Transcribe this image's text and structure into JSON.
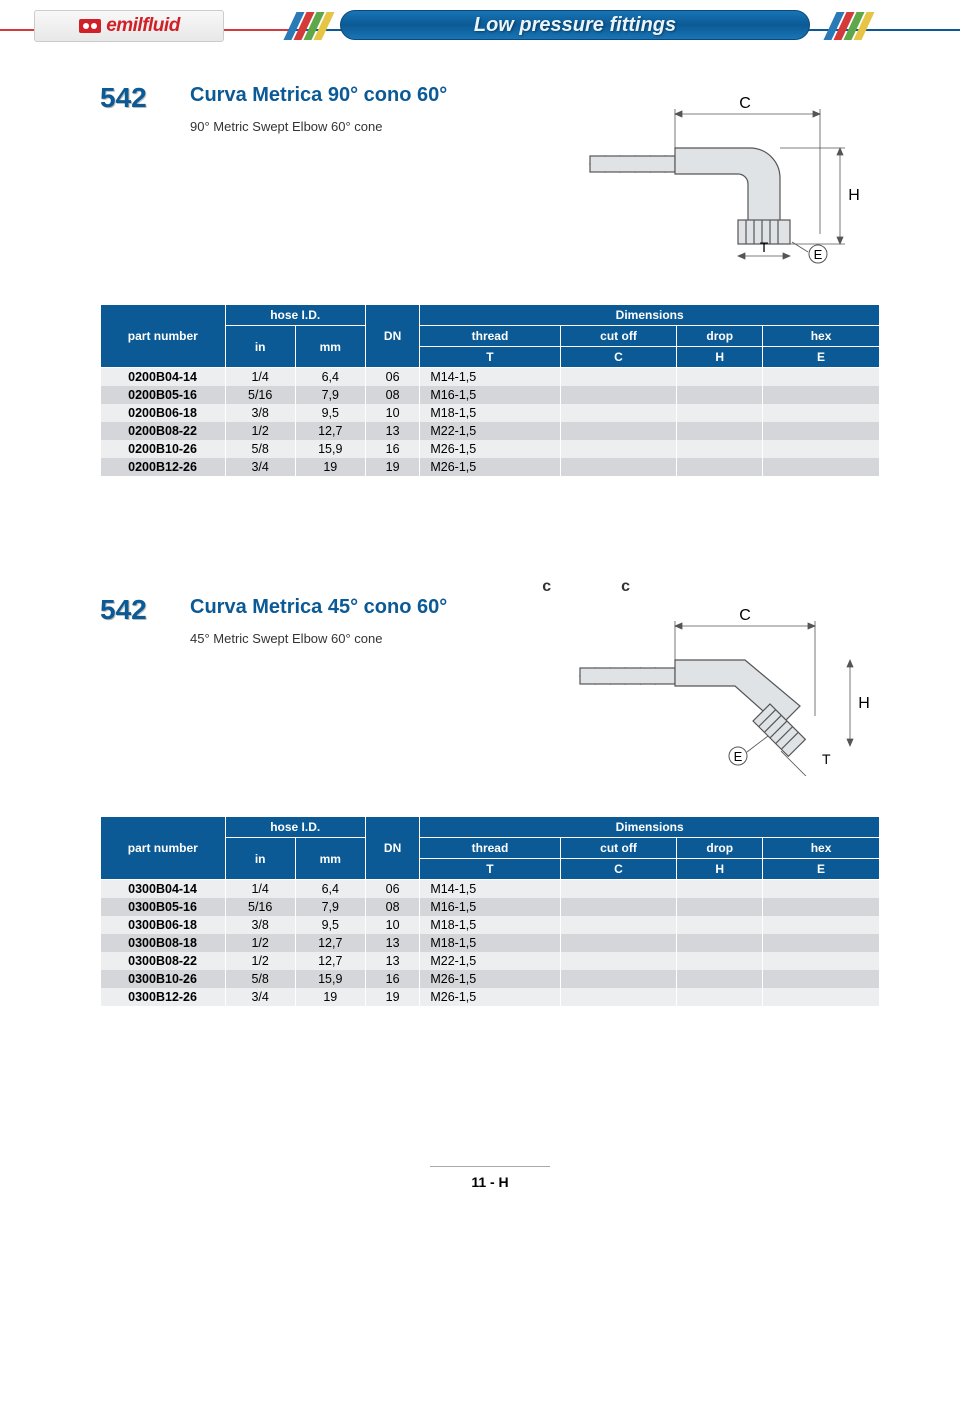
{
  "header": {
    "logo_text": "emilfluid",
    "banner_title": "Low pressure fittings"
  },
  "sections": [
    {
      "number": "542",
      "title": "Curva Metrica 90° cono 60°",
      "subtitle": "90° Metric Swept Elbow 60° cone",
      "diagram_labels": {
        "top": "C",
        "right": "H",
        "bottom": "T",
        "corner": "E"
      },
      "show_cc": false
    },
    {
      "number": "542",
      "title": "Curva Metrica 45° cono 60°",
      "subtitle": "45° Metric Swept Elbow 60° cone",
      "diagram_labels": {
        "top": "C",
        "right": "H",
        "bottom": "T",
        "corner": "E"
      },
      "show_cc": true,
      "cc_text": "cc"
    }
  ],
  "tables": {
    "headers": {
      "part_number": "part number",
      "hose_id": "hose I.D.",
      "dn": "DN",
      "dimensions": "Dimensions",
      "in": "in",
      "mm": "mm",
      "thread": "thread",
      "cutoff": "cut off",
      "drop": "drop",
      "hex": "hex",
      "T": "T",
      "C": "C",
      "H": "H",
      "E": "E"
    },
    "table1_rows": [
      {
        "pn": "0200B04-14",
        "in": "1/4",
        "mm": "6,4",
        "dn": "06",
        "thread": "M14-1,5"
      },
      {
        "pn": "0200B05-16",
        "in": "5/16",
        "mm": "7,9",
        "dn": "08",
        "thread": "M16-1,5"
      },
      {
        "pn": "0200B06-18",
        "in": "3/8",
        "mm": "9,5",
        "dn": "10",
        "thread": "M18-1,5"
      },
      {
        "pn": "0200B08-22",
        "in": "1/2",
        "mm": "12,7",
        "dn": "13",
        "thread": "M22-1,5"
      },
      {
        "pn": "0200B10-26",
        "in": "5/8",
        "mm": "15,9",
        "dn": "16",
        "thread": "M26-1,5"
      },
      {
        "pn": "0200B12-26",
        "in": "3/4",
        "mm": "19",
        "dn": "19",
        "thread": "M26-1,5"
      }
    ],
    "table2_rows": [
      {
        "pn": "0300B04-14",
        "in": "1/4",
        "mm": "6,4",
        "dn": "06",
        "thread": "M14-1,5"
      },
      {
        "pn": "0300B05-16",
        "in": "5/16",
        "mm": "7,9",
        "dn": "08",
        "thread": "M16-1,5"
      },
      {
        "pn": "0300B06-18",
        "in": "3/8",
        "mm": "9,5",
        "dn": "10",
        "thread": "M18-1,5"
      },
      {
        "pn": "0300B08-18",
        "in": "1/2",
        "mm": "12,7",
        "dn": "13",
        "thread": "M18-1,5"
      },
      {
        "pn": "0300B08-22",
        "in": "1/2",
        "mm": "12,7",
        "dn": "13",
        "thread": "M22-1,5"
      },
      {
        "pn": "0300B10-26",
        "in": "5/8",
        "mm": "15,9",
        "dn": "16",
        "thread": "M26-1,5"
      },
      {
        "pn": "0300B12-26",
        "in": "3/4",
        "mm": "19",
        "dn": "19",
        "thread": "M26-1,5"
      }
    ]
  },
  "footer": {
    "page": "11 - H"
  },
  "colors": {
    "brand_blue": "#0b5a95",
    "brand_red": "#d02028",
    "row_odd": "#eceef0",
    "row_even": "#d4d6d9"
  }
}
